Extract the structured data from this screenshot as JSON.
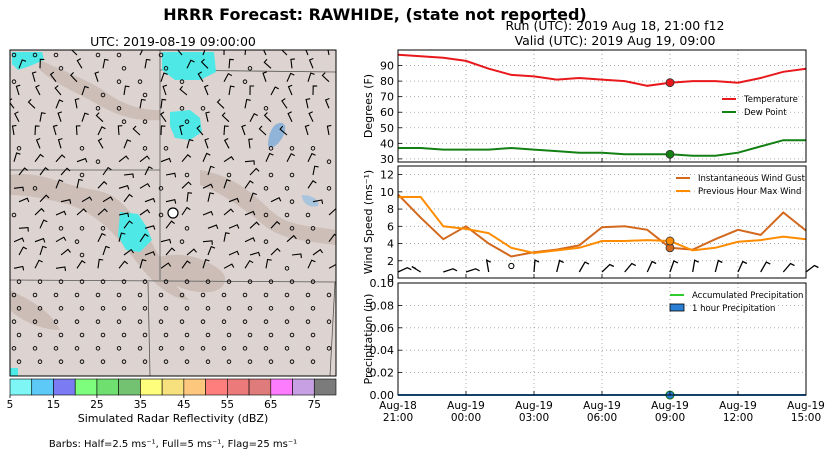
{
  "title": "HRRR Forecast: RAWHIDE, (state not reported)",
  "map": {
    "title": "UTC: 2019-08-19 09:00:00",
    "colorbar_label": "Simulated Radar Reflectivity (dBZ)",
    "colorbar_ticks": [
      "5",
      "15",
      "25",
      "35",
      "45",
      "55",
      "65",
      "75"
    ],
    "colorbar_colors": [
      "#7ef6f6",
      "#5cc9f7",
      "#7b7bf3",
      "#7dfe7d",
      "#6fe06f",
      "#72c271",
      "#fefe7c",
      "#f7e17e",
      "#fdc77e",
      "#fe7e7e",
      "#ec7a7a",
      "#e07b7b",
      "#fd7cfd",
      "#c7a0e4",
      "#7b7b7b"
    ],
    "barb_caption": "Barbs: Half=2.5 ms⁻¹, Full=5 ms⁻¹, Flag=25 ms⁻¹"
  },
  "run_title": "Run (UTC): 2019 Aug 18, 21:00 f12",
  "valid_title": "Valid (UTC): 2019 Aug 19, 09:00",
  "chart_data": [
    {
      "type": "line",
      "ylabel": "Degrees (F)",
      "ylim": [
        28,
        100
      ],
      "yticks": [
        "30",
        "40",
        "50",
        "60",
        "70",
        "80",
        "90"
      ],
      "x": [
        0,
        1,
        2,
        3,
        4,
        5,
        6,
        7,
        8,
        9,
        10,
        11,
        12,
        13,
        14,
        15,
        16,
        17,
        18
      ],
      "series": [
        {
          "name": "Temperature",
          "color": "#e8191c",
          "values": [
            97,
            96,
            95,
            93,
            88,
            84,
            83,
            81,
            82,
            81,
            80,
            77,
            79,
            80,
            80,
            79,
            82,
            86,
            88
          ]
        },
        {
          "name": "Dew Point",
          "color": "#138013",
          "values": [
            37,
            37,
            36,
            36,
            36,
            37,
            36,
            35,
            34,
            34,
            33,
            33,
            33,
            32,
            32,
            34,
            38,
            42,
            42
          ]
        }
      ],
      "highlight_index": 12,
      "grid": true,
      "legend": "right"
    },
    {
      "type": "line",
      "ylabel": "Wind Speed (ms⁻¹)",
      "ylim": [
        0,
        13
      ],
      "yticks": [
        "0",
        "2",
        "4",
        "6",
        "8",
        "10",
        "12"
      ],
      "x": [
        0,
        1,
        2,
        3,
        4,
        5,
        6,
        7,
        8,
        9,
        10,
        11,
        12,
        13,
        14,
        15,
        16,
        17,
        18
      ],
      "series": [
        {
          "name": "Instantaneous Wind Gust",
          "color": "#d2691e",
          "values": [
            9.7,
            7.0,
            4.5,
            6.0,
            4.0,
            2.5,
            3.0,
            3.3,
            3.8,
            5.9,
            6.0,
            5.6,
            3.5,
            3.3,
            4.5,
            5.6,
            5.0,
            7.6,
            5.5
          ]
        },
        {
          "name": "Previous Hour Max Wind",
          "color": "#ff8c00",
          "values": [
            9.4,
            9.4,
            6.0,
            5.7,
            5.2,
            3.5,
            2.9,
            3.2,
            3.5,
            4.3,
            4.3,
            4.4,
            4.3,
            3.2,
            3.5,
            4.2,
            4.4,
            4.8,
            4.5
          ]
        }
      ],
      "highlight_index": 12,
      "grid": true,
      "legend": "top-right"
    },
    {
      "type": "area",
      "ylabel": "Precipitation (in)",
      "ylim": [
        0,
        0.1
      ],
      "yticks": [
        "0.00",
        "0.02",
        "0.04",
        "0.06",
        "0.08",
        "0.10"
      ],
      "series": [
        {
          "name": "Accumulated Precipitation",
          "color": "#2ecc2e",
          "values": [
            0,
            0,
            0,
            0,
            0,
            0,
            0,
            0,
            0,
            0,
            0,
            0,
            0,
            0,
            0,
            0,
            0,
            0,
            0
          ]
        },
        {
          "name": "1 hour Precipitation",
          "color": "#2a7fd4",
          "values": [
            0,
            0,
            0,
            0,
            0,
            0,
            0,
            0,
            0,
            0,
            0,
            0,
            0,
            0,
            0,
            0,
            0,
            0,
            0
          ]
        }
      ],
      "highlight_index": 12,
      "grid": true,
      "legend": "top-right",
      "xticks": [
        {
          "line1": "Aug-18",
          "line2": "21:00"
        },
        {
          "line1": "Aug-19",
          "line2": "00:00"
        },
        {
          "line1": "Aug-19",
          "line2": "03:00"
        },
        {
          "line1": "Aug-19",
          "line2": "06:00"
        },
        {
          "line1": "Aug-19",
          "line2": "09:00"
        },
        {
          "line1": "Aug-19",
          "line2": "12:00"
        },
        {
          "line1": "Aug-19",
          "line2": "15:00"
        }
      ]
    }
  ]
}
